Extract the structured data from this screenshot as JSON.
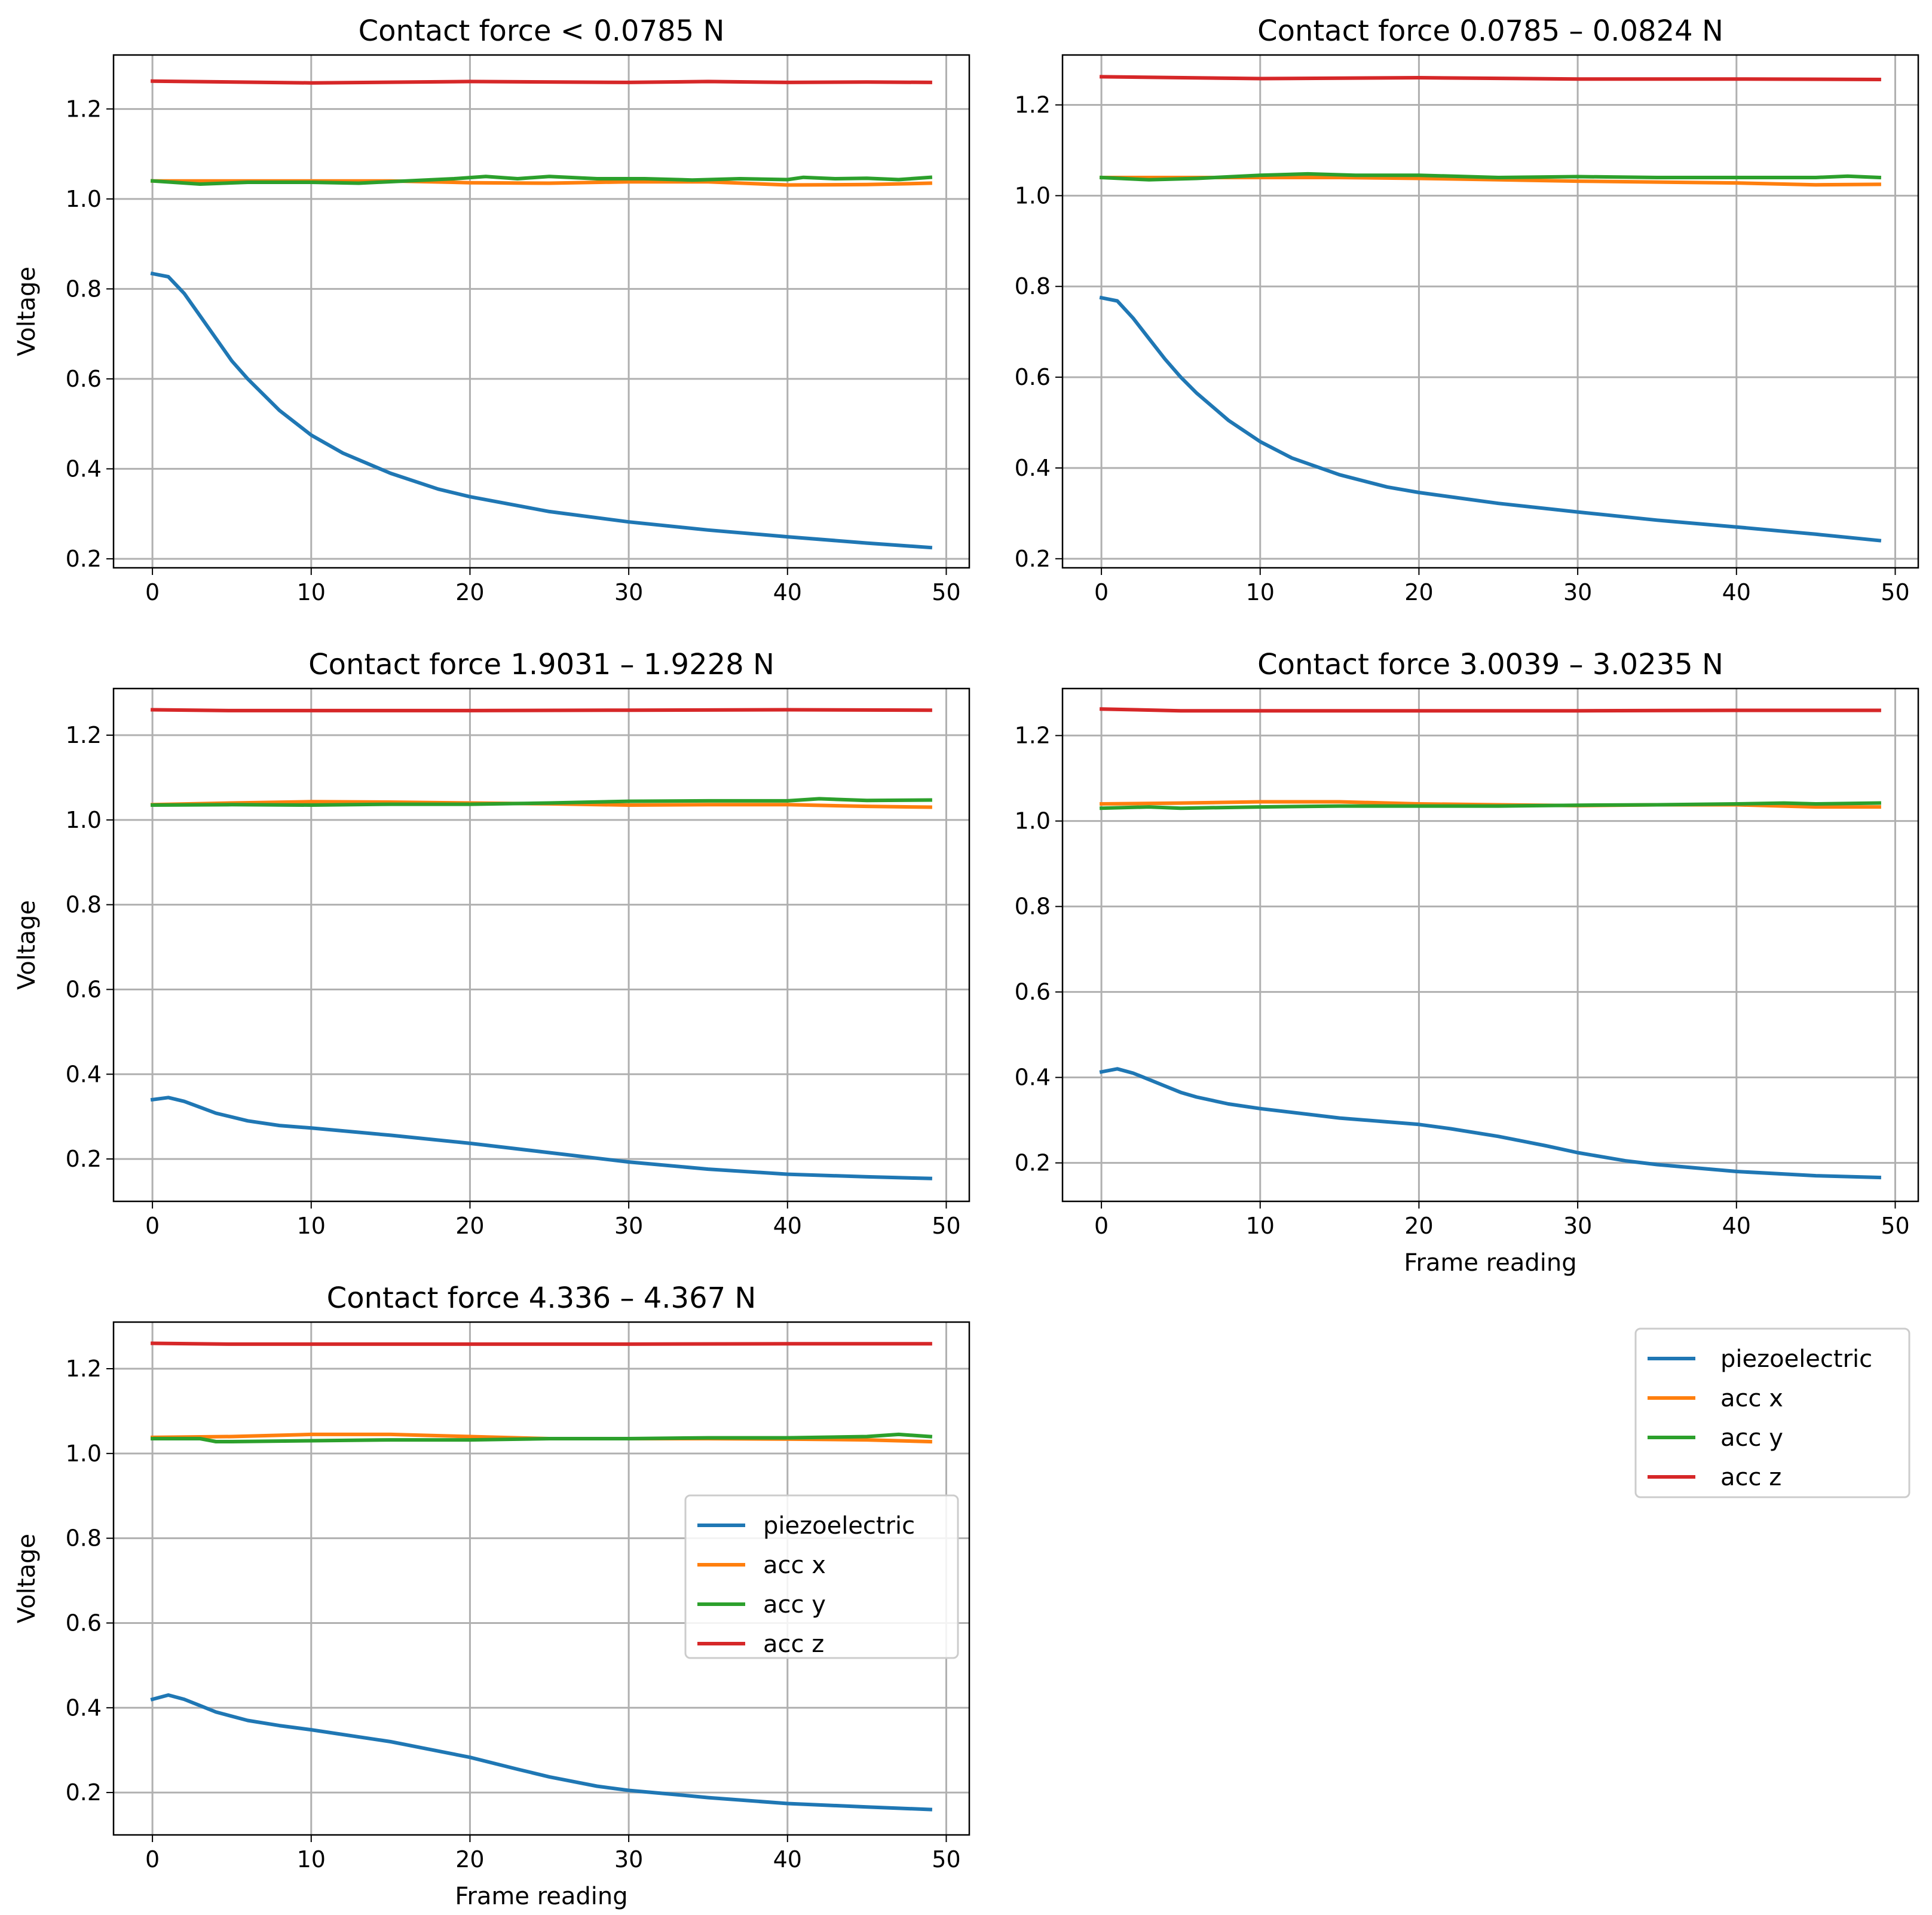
{
  "colors": {
    "piezoelectric": "#1f77b4",
    "acc_x": "#ff7f0e",
    "acc_y": "#2ca02c",
    "acc_z": "#d62728",
    "grid": "#b0b0b0"
  },
  "chart_data": [
    {
      "type": "line",
      "title": "Contact force < 0.0785 N",
      "xlabel": "",
      "ylabel": "Voltage",
      "xlim": [
        -2.45,
        51.45
      ],
      "ylim": [
        0.18,
        1.32
      ],
      "xticks": [
        "0",
        "10",
        "20",
        "30",
        "40",
        "50"
      ],
      "yticks": [
        "0.2",
        "0.4",
        "0.6",
        "0.8",
        "1.0",
        "1.2"
      ],
      "grid": true,
      "legend": null,
      "series": [
        {
          "name": "piezoelectric",
          "x": [
            0,
            1,
            2,
            3,
            4,
            5,
            6,
            8,
            10,
            12,
            15,
            18,
            20,
            25,
            30,
            35,
            40,
            45,
            49
          ],
          "values": [
            0.834,
            0.827,
            0.79,
            0.74,
            0.69,
            0.64,
            0.6,
            0.53,
            0.475,
            0.435,
            0.39,
            0.355,
            0.338,
            0.305,
            0.282,
            0.264,
            0.249,
            0.235,
            0.225
          ]
        },
        {
          "name": "acc x",
          "x": [
            0,
            5,
            10,
            15,
            20,
            25,
            30,
            35,
            40,
            45,
            49
          ],
          "values": [
            1.04,
            1.04,
            1.04,
            1.04,
            1.036,
            1.035,
            1.038,
            1.038,
            1.031,
            1.032,
            1.035
          ]
        },
        {
          "name": "acc y",
          "x": [
            0,
            3,
            6,
            10,
            13,
            16,
            19,
            21,
            23,
            25,
            28,
            31,
            34,
            37,
            40,
            41,
            43,
            45,
            47,
            49
          ],
          "values": [
            1.04,
            1.033,
            1.037,
            1.037,
            1.035,
            1.04,
            1.045,
            1.05,
            1.045,
            1.05,
            1.045,
            1.045,
            1.042,
            1.045,
            1.043,
            1.048,
            1.045,
            1.046,
            1.043,
            1.048
          ]
        },
        {
          "name": "acc z",
          "x": [
            0,
            10,
            20,
            30,
            35,
            40,
            45,
            49
          ],
          "values": [
            1.262,
            1.258,
            1.261,
            1.259,
            1.261,
            1.259,
            1.26,
            1.259
          ]
        }
      ]
    },
    {
      "type": "line",
      "title": "Contact force 0.0785 – 0.0824 N",
      "xlabel": "",
      "ylabel": "",
      "xlim": [
        -2.45,
        51.45
      ],
      "ylim": [
        0.18,
        1.31
      ],
      "xticks": [
        "0",
        "10",
        "20",
        "30",
        "40",
        "50"
      ],
      "yticks": [
        "0.2",
        "0.4",
        "0.6",
        "0.8",
        "1.0",
        "1.2"
      ],
      "grid": true,
      "legend": null,
      "series": [
        {
          "name": "piezoelectric",
          "x": [
            0,
            1,
            2,
            3,
            4,
            5,
            6,
            8,
            10,
            12,
            15,
            18,
            20,
            25,
            30,
            35,
            40,
            45,
            49
          ],
          "values": [
            0.775,
            0.768,
            0.73,
            0.685,
            0.64,
            0.6,
            0.565,
            0.505,
            0.458,
            0.422,
            0.385,
            0.358,
            0.346,
            0.322,
            0.303,
            0.285,
            0.27,
            0.254,
            0.24
          ]
        },
        {
          "name": "acc x",
          "x": [
            0,
            5,
            10,
            15,
            20,
            25,
            30,
            35,
            40,
            45,
            49
          ],
          "values": [
            1.04,
            1.04,
            1.04,
            1.04,
            1.038,
            1.035,
            1.032,
            1.03,
            1.028,
            1.024,
            1.025
          ]
        },
        {
          "name": "acc y",
          "x": [
            0,
            3,
            6,
            10,
            13,
            16,
            20,
            25,
            30,
            35,
            40,
            45,
            47,
            49
          ],
          "values": [
            1.04,
            1.035,
            1.038,
            1.045,
            1.048,
            1.045,
            1.045,
            1.04,
            1.042,
            1.04,
            1.04,
            1.04,
            1.043,
            1.04
          ]
        },
        {
          "name": "acc z",
          "x": [
            0,
            10,
            20,
            30,
            40,
            49
          ],
          "values": [
            1.262,
            1.258,
            1.26,
            1.257,
            1.257,
            1.256
          ]
        }
      ]
    },
    {
      "type": "line",
      "title": "Contact force 1.9031 – 1.9228 N",
      "xlabel": "",
      "ylabel": "Voltage",
      "xlim": [
        -2.45,
        51.45
      ],
      "ylim": [
        0.1,
        1.31
      ],
      "xticks": [
        "0",
        "10",
        "20",
        "30",
        "40",
        "50"
      ],
      "yticks": [
        "0.2",
        "0.4",
        "0.6",
        "0.8",
        "1.0",
        "1.2"
      ],
      "grid": true,
      "legend": null,
      "series": [
        {
          "name": "piezoelectric",
          "x": [
            0,
            1,
            2,
            3,
            4,
            6,
            8,
            10,
            15,
            20,
            25,
            30,
            35,
            40,
            45,
            49
          ],
          "values": [
            0.34,
            0.345,
            0.336,
            0.322,
            0.308,
            0.29,
            0.279,
            0.273,
            0.256,
            0.237,
            0.215,
            0.193,
            0.176,
            0.164,
            0.158,
            0.154
          ]
        },
        {
          "name": "acc x",
          "x": [
            0,
            5,
            10,
            15,
            20,
            25,
            30,
            35,
            40,
            45,
            49
          ],
          "values": [
            1.036,
            1.04,
            1.043,
            1.042,
            1.04,
            1.038,
            1.035,
            1.036,
            1.036,
            1.032,
            1.03
          ]
        },
        {
          "name": "acc y",
          "x": [
            0,
            5,
            10,
            15,
            20,
            25,
            30,
            35,
            40,
            42,
            45,
            49
          ],
          "values": [
            1.035,
            1.036,
            1.035,
            1.037,
            1.037,
            1.04,
            1.044,
            1.045,
            1.045,
            1.05,
            1.046,
            1.047
          ]
        },
        {
          "name": "acc z",
          "x": [
            0,
            5,
            10,
            20,
            30,
            40,
            49
          ],
          "values": [
            1.26,
            1.258,
            1.258,
            1.258,
            1.259,
            1.26,
            1.259
          ]
        }
      ]
    },
    {
      "type": "line",
      "title": "Contact force  3.0039 – 3.0235 N",
      "xlabel": "Frame reading",
      "ylabel": "",
      "xlim": [
        -2.45,
        51.45
      ],
      "ylim": [
        0.11,
        1.31
      ],
      "xticks": [
        "0",
        "10",
        "20",
        "30",
        "40",
        "50"
      ],
      "yticks": [
        "0.2",
        "0.4",
        "0.6",
        "0.8",
        "1.0",
        "1.2"
      ],
      "grid": true,
      "legend": null,
      "series": [
        {
          "name": "piezoelectric",
          "x": [
            0,
            1,
            2,
            3,
            4,
            5,
            6,
            8,
            10,
            15,
            20,
            22,
            25,
            28,
            30,
            33,
            35,
            40,
            45,
            49
          ],
          "values": [
            0.413,
            0.42,
            0.41,
            0.395,
            0.38,
            0.365,
            0.354,
            0.338,
            0.327,
            0.305,
            0.29,
            0.28,
            0.262,
            0.24,
            0.224,
            0.205,
            0.196,
            0.18,
            0.17,
            0.166
          ]
        },
        {
          "name": "acc x",
          "x": [
            0,
            5,
            10,
            15,
            20,
            25,
            30,
            35,
            40,
            45,
            49
          ],
          "values": [
            1.04,
            1.042,
            1.045,
            1.045,
            1.04,
            1.038,
            1.036,
            1.038,
            1.038,
            1.033,
            1.033
          ]
        },
        {
          "name": "acc y",
          "x": [
            0,
            3,
            5,
            10,
            15,
            20,
            25,
            30,
            35,
            40,
            43,
            45,
            49
          ],
          "values": [
            1.03,
            1.033,
            1.03,
            1.033,
            1.035,
            1.035,
            1.035,
            1.037,
            1.038,
            1.04,
            1.042,
            1.04,
            1.042
          ]
        },
        {
          "name": "acc z",
          "x": [
            0,
            5,
            10,
            20,
            30,
            40,
            49
          ],
          "values": [
            1.262,
            1.258,
            1.258,
            1.258,
            1.258,
            1.259,
            1.259
          ]
        }
      ]
    },
    {
      "type": "line",
      "title": "Contact force 4.336 – 4.367 N",
      "xlabel": "Frame reading",
      "ylabel": "Voltage",
      "xlim": [
        -2.45,
        51.45
      ],
      "ylim": [
        0.1,
        1.31
      ],
      "xticks": [
        "0",
        "10",
        "20",
        "30",
        "40",
        "50"
      ],
      "yticks": [
        "0.2",
        "0.4",
        "0.6",
        "0.8",
        "1.0",
        "1.2"
      ],
      "grid": true,
      "legend": "center-right",
      "series": [
        {
          "name": "piezoelectric",
          "x": [
            0,
            1,
            2,
            3,
            4,
            6,
            8,
            10,
            15,
            20,
            23,
            25,
            28,
            30,
            33,
            35,
            40,
            45,
            49
          ],
          "values": [
            0.42,
            0.43,
            0.42,
            0.405,
            0.39,
            0.37,
            0.358,
            0.348,
            0.32,
            0.283,
            0.255,
            0.237,
            0.215,
            0.205,
            0.195,
            0.188,
            0.174,
            0.166,
            0.16
          ]
        },
        {
          "name": "acc x",
          "x": [
            0,
            5,
            10,
            15,
            20,
            25,
            30,
            35,
            40,
            45,
            49
          ],
          "values": [
            1.038,
            1.04,
            1.045,
            1.045,
            1.04,
            1.035,
            1.035,
            1.035,
            1.034,
            1.032,
            1.028
          ]
        },
        {
          "name": "acc y",
          "x": [
            0,
            3,
            4,
            5,
            10,
            15,
            20,
            25,
            30,
            35,
            40,
            45,
            47,
            49
          ],
          "values": [
            1.035,
            1.035,
            1.028,
            1.028,
            1.03,
            1.032,
            1.032,
            1.035,
            1.035,
            1.037,
            1.037,
            1.04,
            1.045,
            1.04
          ]
        },
        {
          "name": "acc z",
          "x": [
            0,
            5,
            10,
            20,
            30,
            40,
            49
          ],
          "values": [
            1.26,
            1.258,
            1.258,
            1.258,
            1.258,
            1.259,
            1.259
          ]
        }
      ]
    }
  ],
  "figure_legend": {
    "entries": [
      "piezoelectric",
      "acc x",
      "acc y",
      "acc z"
    ]
  }
}
